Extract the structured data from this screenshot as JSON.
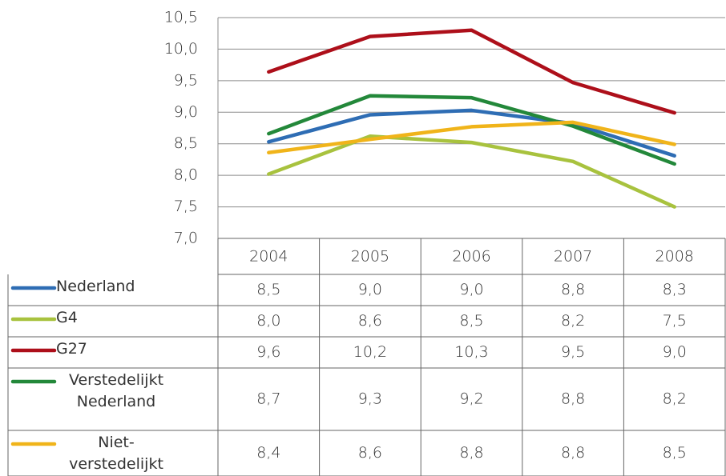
{
  "chart_data": {
    "type": "line",
    "categories": [
      "2004",
      "2005",
      "2006",
      "2007",
      "2008"
    ],
    "ylim": [
      7.0,
      10.5
    ],
    "yticks": [
      {
        "value": 7.0,
        "label": "7,0"
      },
      {
        "value": 7.5,
        "label": "7,5"
      },
      {
        "value": 8.0,
        "label": "8,0"
      },
      {
        "value": 8.5,
        "label": "8,5"
      },
      {
        "value": 9.0,
        "label": "9,0"
      },
      {
        "value": 9.5,
        "label": "9,5"
      },
      {
        "value": 10.0,
        "label": "10,0"
      },
      {
        "value": 10.5,
        "label": "10,5"
      }
    ],
    "grid": true,
    "series": [
      {
        "name": "Nederland",
        "color": "#2e6db4",
        "values": [
          8.53,
          8.96,
          9.03,
          8.82,
          8.31
        ],
        "value_labels": [
          "8,5",
          "9,0",
          "9,0",
          "8,8",
          "8,3"
        ]
      },
      {
        "name": "G4",
        "color": "#a8c23e",
        "values": [
          8.02,
          8.62,
          8.52,
          8.22,
          7.5
        ],
        "value_labels": [
          "8,0",
          "8,6",
          "8,5",
          "8,2",
          "7,5"
        ]
      },
      {
        "name": "G27",
        "color": "#ad0f1a",
        "values": [
          9.64,
          10.2,
          10.3,
          9.47,
          8.99
        ],
        "value_labels": [
          "9,6",
          "10,2",
          "10,3",
          "9,5",
          "9,0"
        ]
      },
      {
        "name": "Verstedelijkt Nederland",
        "color": "#23883a",
        "values": [
          8.66,
          9.26,
          9.23,
          8.78,
          8.18
        ],
        "value_labels": [
          "8,7",
          "9,3",
          "9,2",
          "8,8",
          "8,2"
        ]
      },
      {
        "name": "Niet-verstedelijkt Nederland",
        "color": "#f0b41a",
        "values": [
          8.36,
          8.57,
          8.77,
          8.84,
          8.49
        ],
        "value_labels": [
          "8,4",
          "8,6",
          "8,8",
          "8,8",
          "8,5"
        ]
      }
    ]
  }
}
